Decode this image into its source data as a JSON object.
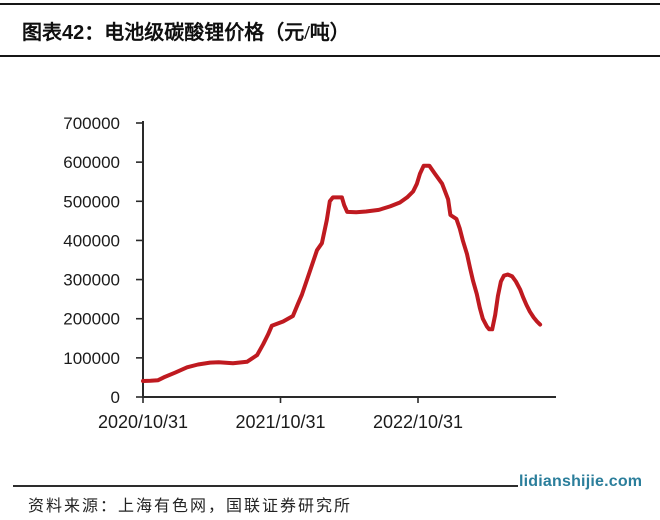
{
  "figure_header": {
    "label": "图表42：",
    "title": "电池级碳酸锂价格（元/吨）"
  },
  "watermark": {
    "text": "lidianshijie.com",
    "color": "#2b7e9b"
  },
  "source": {
    "text": "资料来源：上海有色网，国联证券研究所"
  },
  "chart_data": {
    "type": "line",
    "title": "电池级碳酸锂价格（元/吨）",
    "grid": false,
    "legend_position": "none",
    "colors": {
      "line": "#bf1a20",
      "axis": "#2a2a2a",
      "tick_label": "#1b1b1b"
    },
    "x_axis": {
      "tick_labels": [
        "2020/10/31",
        "2021/10/31",
        "2022/10/31"
      ]
    },
    "y_axis": {
      "min": 0,
      "max": 700000,
      "ticks": [
        0,
        100000,
        200000,
        300000,
        400000,
        500000,
        600000,
        700000
      ]
    },
    "series": [
      {
        "name": "电池级碳酸锂价格(元/吨)",
        "color": "#bf1a20",
        "points": [
          [
            "2020/10/31",
            41000
          ],
          [
            "2020/11/20",
            41500
          ],
          [
            "2020/12/10",
            43000
          ],
          [
            "2020/12/25",
            50000
          ],
          [
            "2021/01/24",
            62000
          ],
          [
            "2021/02/25",
            76000
          ],
          [
            "2021/03/26",
            83000
          ],
          [
            "2021/04/27",
            88000
          ],
          [
            "2021/05/20",
            89000
          ],
          [
            "2021/06/27",
            86000
          ],
          [
            "2021/08/03",
            90000
          ],
          [
            "2021/08/30",
            107000
          ],
          [
            "2021/09/15",
            135000
          ],
          [
            "2021/09/28",
            160000
          ],
          [
            "2021/10/08",
            182000
          ],
          [
            "2021/11/07",
            193000
          ],
          [
            "2021/12/03",
            207000
          ],
          [
            "2021/12/16",
            237000
          ],
          [
            "2021/12/27",
            262000
          ],
          [
            "2022/01/09",
            299000
          ],
          [
            "2022/02/05",
            375000
          ],
          [
            "2022/02/18",
            393000
          ],
          [
            "2022/03/03",
            452000
          ],
          [
            "2022/03/11",
            500000
          ],
          [
            "2022/03/19",
            510000
          ],
          [
            "2022/04/12",
            510000
          ],
          [
            "2022/04/18",
            490000
          ],
          [
            "2022/04/26",
            473000
          ],
          [
            "2022/05/20",
            472000
          ],
          [
            "2022/06/15",
            474000
          ],
          [
            "2022/07/19",
            478000
          ],
          [
            "2022/08/18",
            487000
          ],
          [
            "2022/09/13",
            497000
          ],
          [
            "2022/10/02",
            510000
          ],
          [
            "2022/10/18",
            525000
          ],
          [
            "2022/10/28",
            545000
          ],
          [
            "2022/11/05",
            570000
          ],
          [
            "2022/11/15",
            591000
          ],
          [
            "2022/11/30",
            591000
          ],
          [
            "2022/12/15",
            570000
          ],
          [
            "2023/01/03",
            545000
          ],
          [
            "2023/01/19",
            505000
          ],
          [
            "2023/01/25",
            465000
          ],
          [
            "2023/02/10",
            455000
          ],
          [
            "2023/02/19",
            430000
          ],
          [
            "2023/02/27",
            400000
          ],
          [
            "2023/03/10",
            365000
          ],
          [
            "2023/03/18",
            330000
          ],
          [
            "2023/03/26",
            297000
          ],
          [
            "2023/04/05",
            263000
          ],
          [
            "2023/04/13",
            228000
          ],
          [
            "2023/04/21",
            200000
          ],
          [
            "2023/05/02",
            180000
          ],
          [
            "2023/05/08",
            173000
          ],
          [
            "2023/05/16",
            173000
          ],
          [
            "2023/05/24",
            210000
          ],
          [
            "2023/05/31",
            258000
          ],
          [
            "2023/06/08",
            295000
          ],
          [
            "2023/06/16",
            310000
          ],
          [
            "2023/06/26",
            313000
          ],
          [
            "2023/07/08",
            308000
          ],
          [
            "2023/07/18",
            295000
          ],
          [
            "2023/07/29",
            275000
          ],
          [
            "2023/08/06",
            255000
          ],
          [
            "2023/08/15",
            235000
          ],
          [
            "2023/08/24",
            218000
          ],
          [
            "2023/09/03",
            203000
          ],
          [
            "2023/09/12",
            193000
          ],
          [
            "2023/09/20",
            185000
          ]
        ]
      }
    ]
  }
}
